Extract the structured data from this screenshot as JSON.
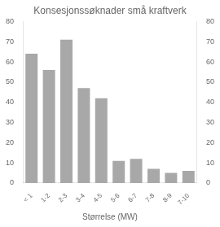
{
  "chart_data": {
    "type": "bar",
    "title": "Konsesjonssøknader små kraftverk",
    "xlabel": "Størrelse (MW)",
    "categories": [
      "< 1",
      "1-2",
      "2-3",
      "3-4",
      "4-5",
      "5-6",
      "6-7",
      "7-8",
      "8-9",
      "7-10"
    ],
    "values": [
      64,
      56,
      71,
      47,
      42,
      11,
      12,
      7,
      5,
      6
    ],
    "color": "#a8a8a8",
    "ylim": [
      0,
      80
    ],
    "yticks": [
      0,
      10,
      20,
      30,
      40,
      50,
      60,
      70,
      80
    ],
    "y2lim": [
      0,
      80
    ],
    "y2ticks": [
      0,
      10,
      20,
      30,
      40,
      50,
      60,
      70,
      80
    ],
    "grid": false
  }
}
